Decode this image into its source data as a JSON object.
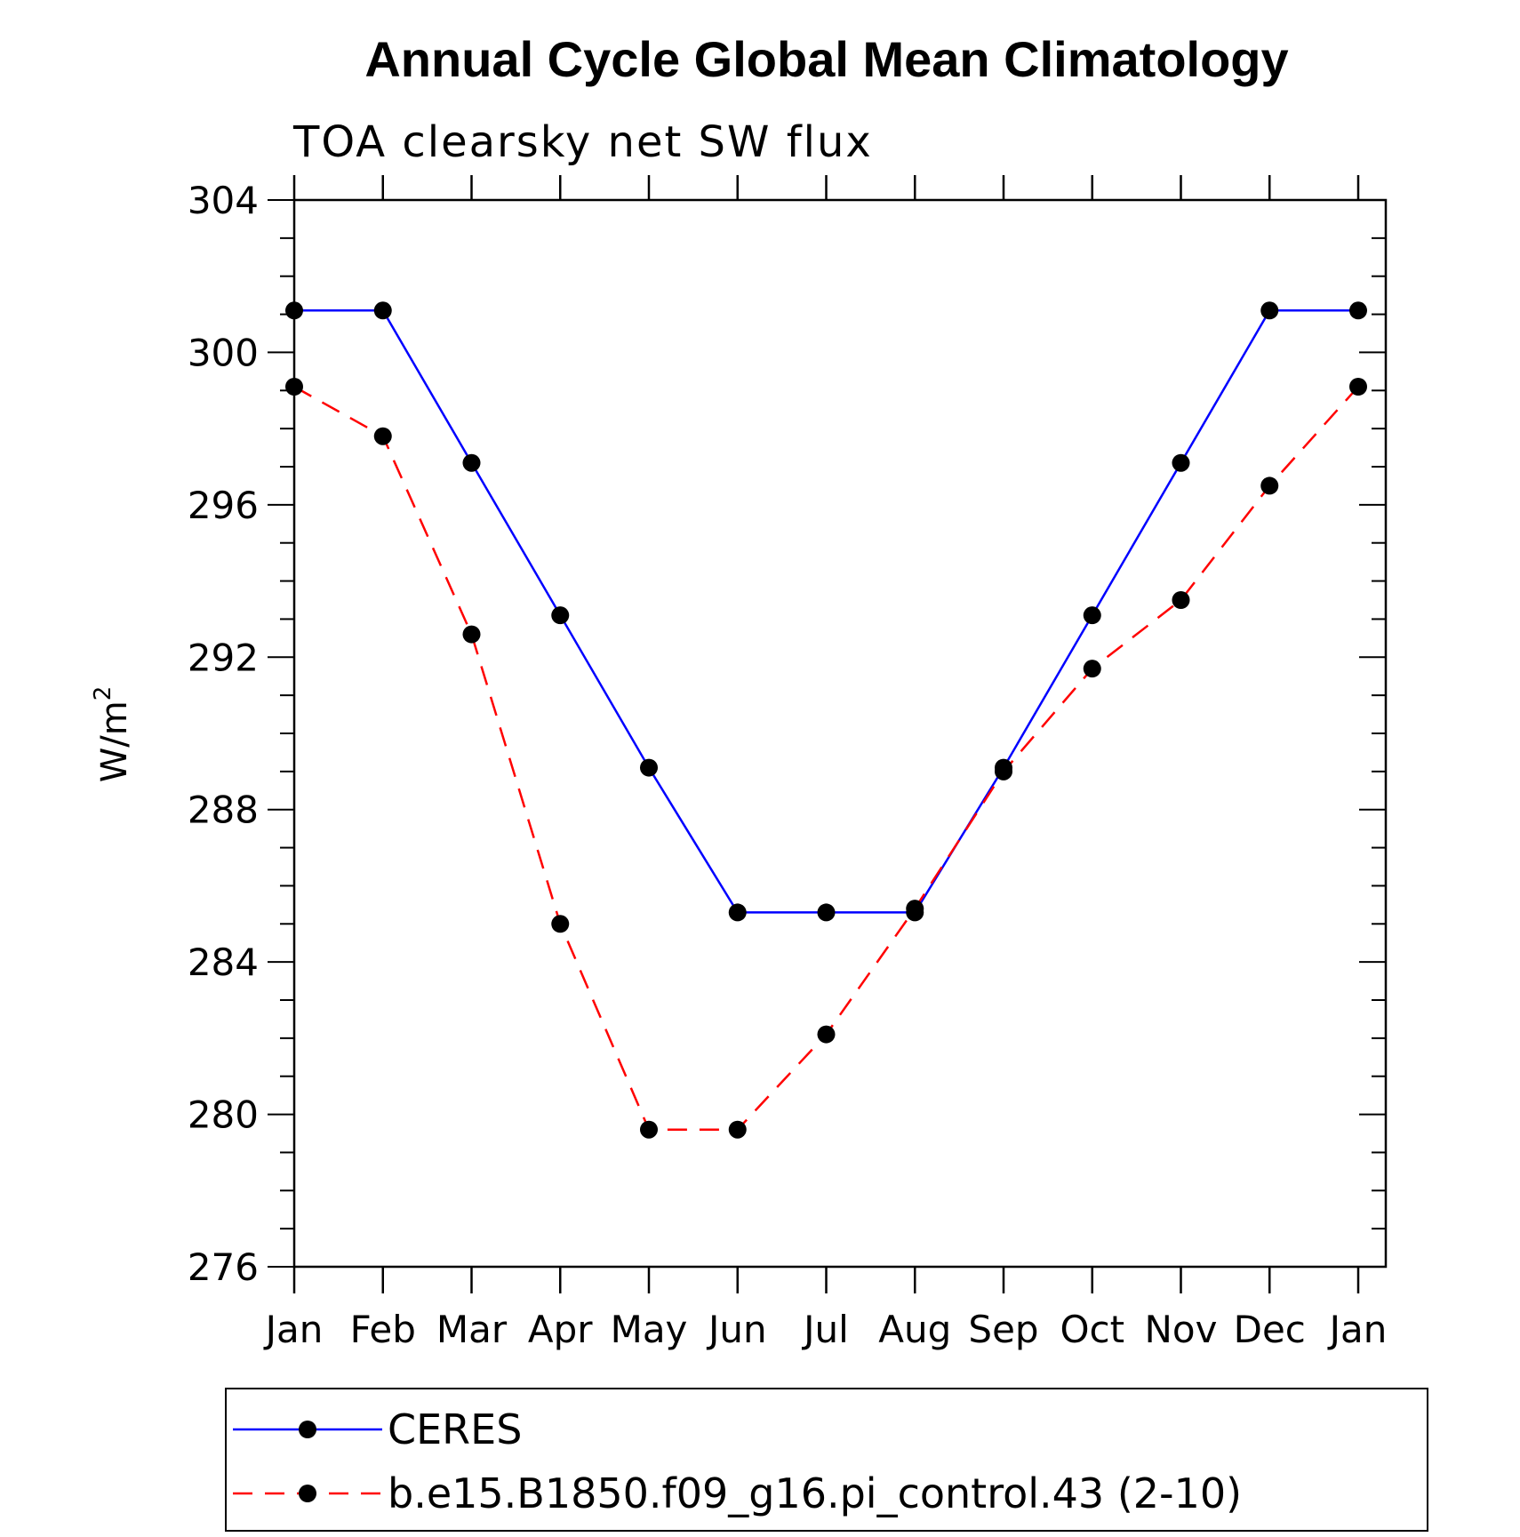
{
  "chart_data": {
    "type": "line",
    "title": "Annual Cycle Global Mean Climatology",
    "subtitle": "TOA clearsky net SW flux",
    "ylabel": "W/m",
    "ylabel_superscript": "2",
    "xlabel": "",
    "categories": [
      "Jan",
      "Feb",
      "Mar",
      "Apr",
      "May",
      "Jun",
      "Jul",
      "Aug",
      "Sep",
      "Oct",
      "Nov",
      "Dec",
      "Jan"
    ],
    "ylim": [
      276,
      304
    ],
    "yticks": [
      "276",
      "280",
      "284",
      "288",
      "292",
      "296",
      "300",
      "304"
    ],
    "grid": false,
    "legend_position": "bottom",
    "series": [
      {
        "name": "CERES",
        "color": "#0000ff",
        "style": "solid",
        "marker": "filled-circle",
        "values": [
          301.1,
          301.1,
          297.1,
          293.1,
          289.1,
          285.3,
          285.3,
          285.3,
          289.1,
          293.1,
          297.1,
          301.1,
          301.1
        ]
      },
      {
        "name": "b.e15.B1850.f09_g16.pi_control.43 (2-10)",
        "color": "#ff0000",
        "style": "dashed",
        "marker": "filled-circle",
        "values": [
          299.1,
          297.8,
          292.6,
          285.0,
          279.6,
          279.6,
          282.1,
          285.4,
          289.0,
          291.7,
          293.5,
          296.5,
          299.1
        ]
      }
    ]
  }
}
